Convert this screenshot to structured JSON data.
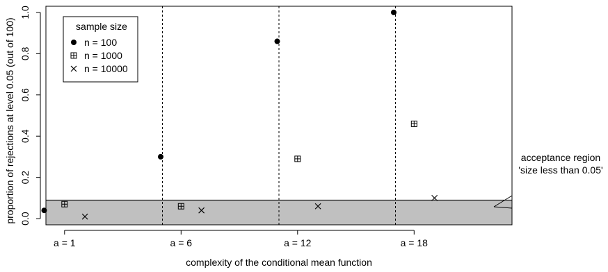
{
  "chart_data": {
    "type": "scatter",
    "xlabel": "complexity of the conditional mean function",
    "ylabel": "proportion of rejections at level 0.05 (out of 100)",
    "categories": [
      "a = 1",
      "a = 6",
      "a = 12",
      "a = 18"
    ],
    "y_ticks": [
      "0.0",
      "0.2",
      "0.4",
      "0.6",
      "0.8",
      "1.0"
    ],
    "ylim": [
      -0.03,
      1.03
    ],
    "series": [
      {
        "name": "n = 100",
        "marker": "filled-circle",
        "x_offset": -0.25,
        "values": [
          0.04,
          0.3,
          0.86,
          1.0
        ]
      },
      {
        "name": "n = 1000",
        "marker": "boxed-plus",
        "x_offset": 0.0,
        "values": [
          0.07,
          0.06,
          0.29,
          0.46
        ]
      },
      {
        "name": "n = 10000",
        "marker": "cross",
        "x_offset": 0.25,
        "values": [
          0.01,
          0.04,
          0.06,
          0.1
        ]
      }
    ],
    "legend": {
      "title": "sample size",
      "position": "top-left"
    },
    "acceptance_region": {
      "ymax": 0.09,
      "color": "#c0c0c0"
    },
    "annotation": {
      "lines": [
        "acceptance region",
        "'size less than 0.05'"
      ]
    },
    "grid": false,
    "group_separators": "dashed"
  }
}
